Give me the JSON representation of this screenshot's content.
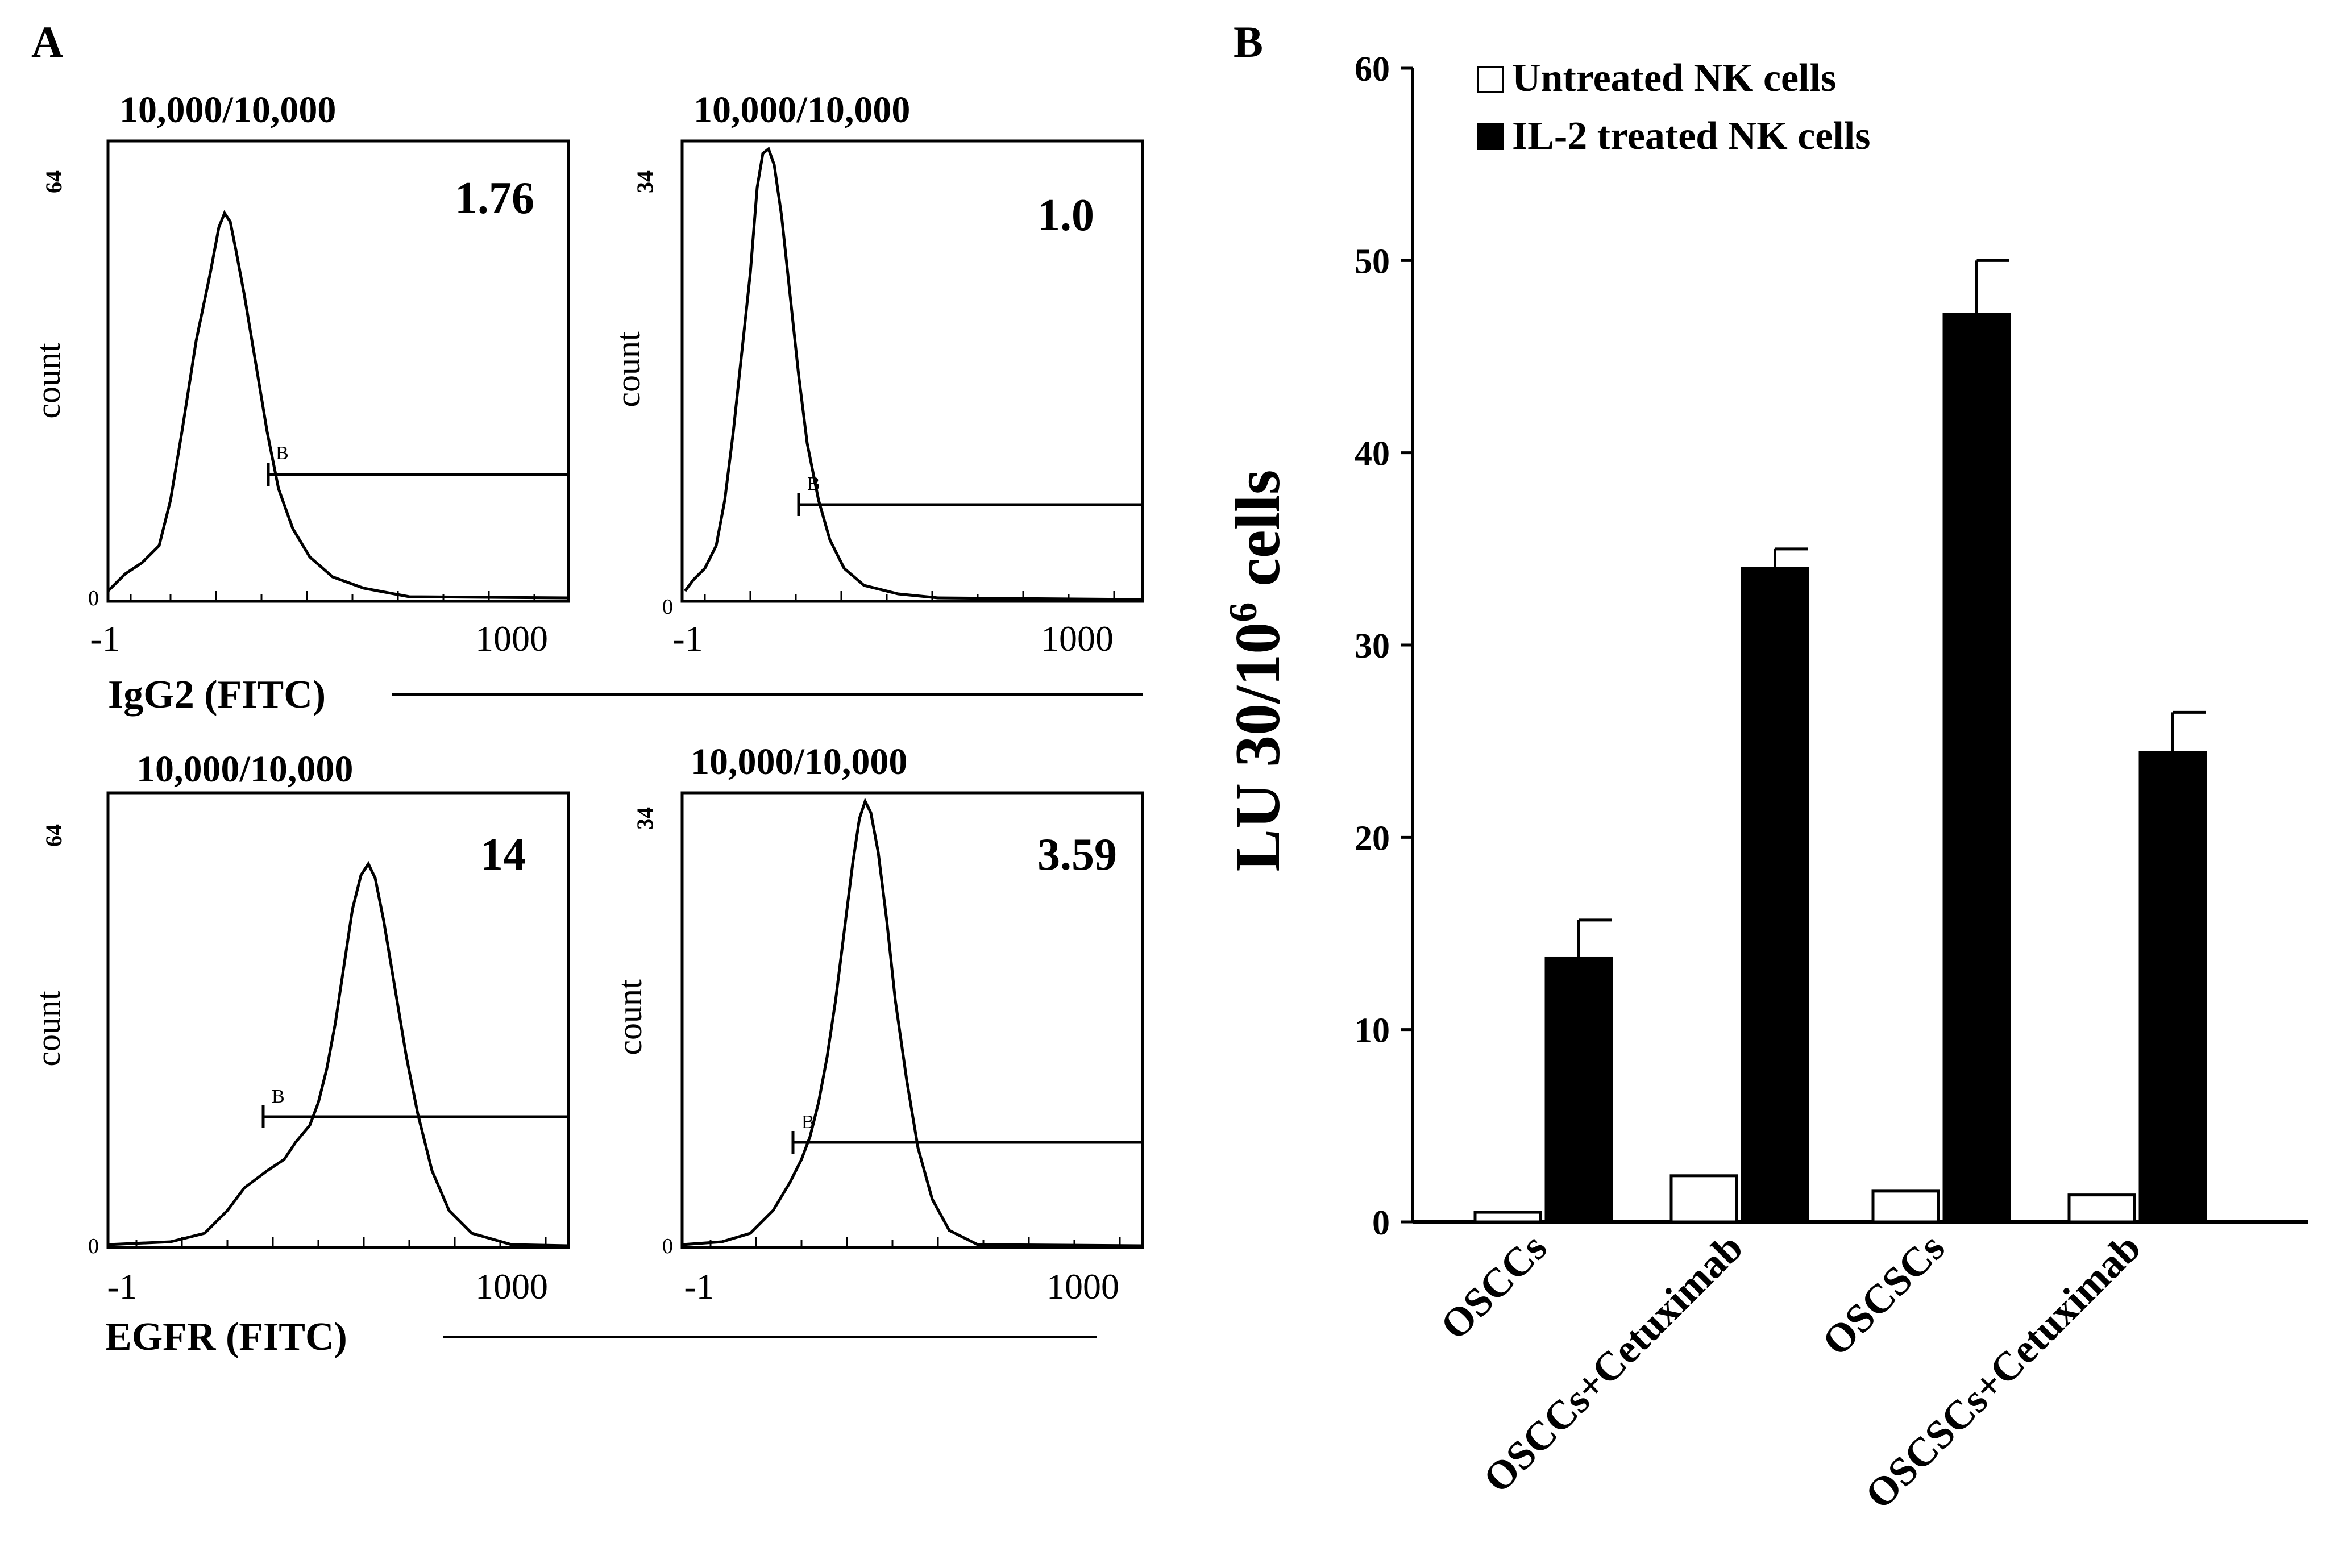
{
  "panel_a": {
    "letter": "A",
    "tick_min_label": "-1",
    "tick_max_label": "1000",
    "y_label": "count",
    "marker_label": "B",
    "y_zero_label": "0",
    "row_labels": [
      "IgG2 (FITC)",
      "EGFR (FITC)"
    ],
    "histograms": [
      {
        "events": "10,000/10,000",
        "value": "1.76",
        "y_max_label": "64"
      },
      {
        "events": "10,000/10,000",
        "value": "1.0",
        "y_max_label": "34"
      },
      {
        "events": "10,000/10,000",
        "value": "14",
        "y_max_label": "64"
      },
      {
        "events": "10,000/10,000",
        "value": "3.59",
        "y_max_label": "34"
      }
    ]
  },
  "panel_b": {
    "letter": "B"
  },
  "chart_data": [
    {
      "type": "bar",
      "title": "",
      "xlabel": "",
      "ylabel": "LU 30/10^6 cells",
      "ylabel_parts": {
        "prefix": "LU 30/10",
        "sup": "6",
        "suffix": " cells"
      },
      "ylim": [
        0,
        60
      ],
      "yticks": [
        "0",
        "10",
        "20",
        "30",
        "40",
        "50",
        "60"
      ],
      "categories": [
        "OSCCs",
        "OSCCs+Cetuximab",
        "OSCSCs",
        "OSCSCs+Cetuximab"
      ],
      "legend_position": "top-left",
      "series": [
        {
          "name": "Untreated NK cells",
          "color": "#ffffff",
          "values": [
            0.5,
            2.4,
            1.6,
            1.4
          ],
          "errors": [
            0,
            0,
            0,
            0
          ]
        },
        {
          "name": "IL-2 treated NK cells",
          "color": "#000000",
          "values": [
            13.7,
            34.0,
            47.2,
            24.4
          ],
          "errors": [
            2.0,
            1.0,
            2.8,
            2.1
          ]
        }
      ]
    },
    {
      "type": "histogram",
      "description_text": "flow cytometry panels",
      "xlabel": "IgG2 (FITC)",
      "ylabel": "count",
      "x_range_labels": [
        "-1",
        "1000"
      ],
      "panels": [
        {
          "events": "10,000/10,000",
          "value": "1.76",
          "y_max": 64
        },
        {
          "events": "10,000/10,000",
          "value": "1.0",
          "y_max": 34
        }
      ]
    },
    {
      "type": "histogram",
      "xlabel": "EGFR (FITC)",
      "ylabel": "count",
      "x_range_labels": [
        "-1",
        "1000"
      ],
      "panels": [
        {
          "events": "10,000/10,000",
          "value": "14",
          "y_max": 64
        },
        {
          "events": "10,000/10,000",
          "value": "3.59",
          "y_max": 34
        }
      ]
    }
  ]
}
